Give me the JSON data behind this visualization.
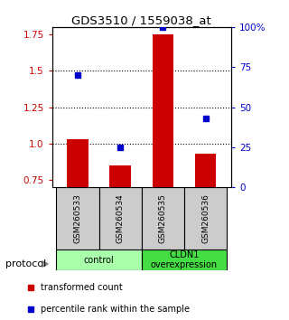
{
  "title": "GDS3510 / 1559038_at",
  "samples": [
    "GSM260533",
    "GSM260534",
    "GSM260535",
    "GSM260536"
  ],
  "transformed_counts": [
    1.03,
    0.85,
    1.75,
    0.93
  ],
  "percentile_ranks": [
    70,
    25,
    100,
    43
  ],
  "ylim_left": [
    0.7,
    1.8
  ],
  "ylim_right": [
    0,
    100
  ],
  "left_ticks": [
    0.75,
    1.0,
    1.25,
    1.5,
    1.75
  ],
  "right_ticks": [
    0,
    25,
    50,
    75,
    100
  ],
  "right_tick_labels": [
    "0",
    "25",
    "50",
    "75",
    "100%"
  ],
  "dotted_lines": [
    1.0,
    1.25,
    1.5
  ],
  "bar_color": "#cc0000",
  "dot_color": "#0000cc",
  "group1_label": "control",
  "group2_label": "CLDN1\noverexpression",
  "group1_color": "#aaffaa",
  "group2_color": "#44dd44",
  "group_box_color": "#cccccc",
  "protocol_label": "protocol",
  "legend_bar_label": "transformed count",
  "legend_dot_label": "percentile rank within the sample",
  "bar_width": 0.5,
  "bar_bottom": 0.7
}
